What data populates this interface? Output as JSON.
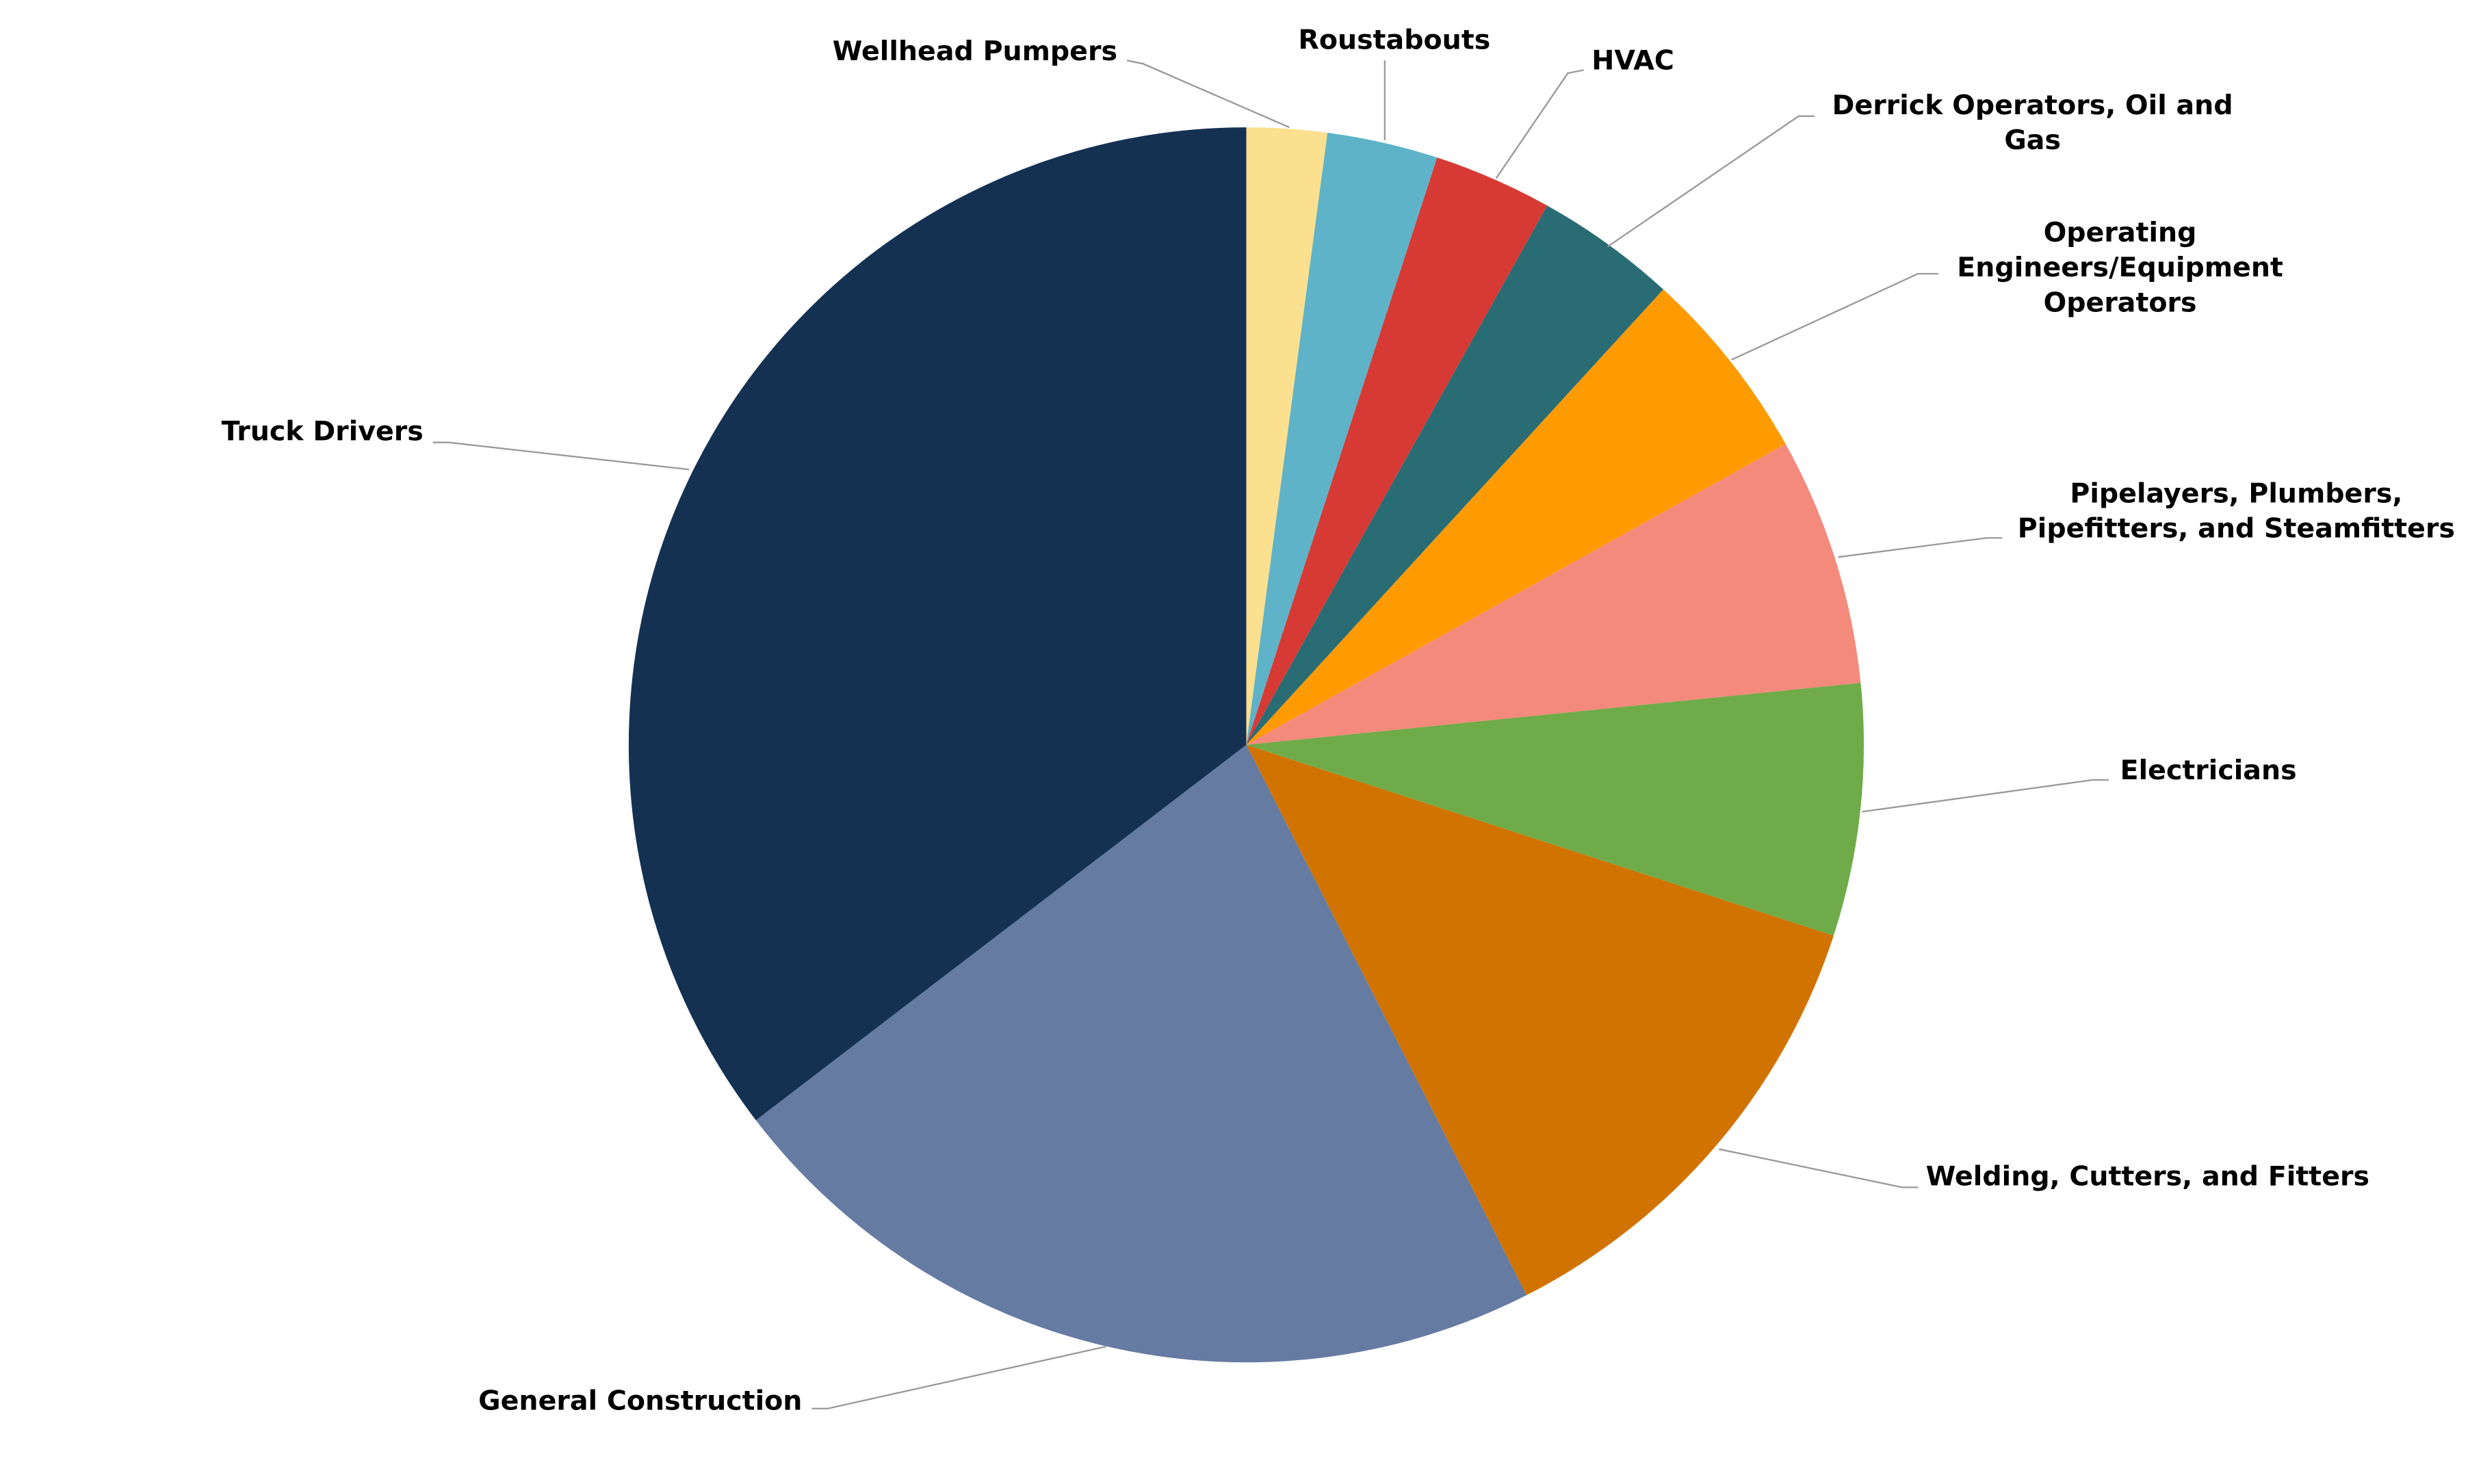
{
  "chart_data": {
    "type": "pie",
    "categories": [
      "Wellhead Pumpers",
      "Roustabouts",
      "HVAC",
      "Derrick Operators, Oil and Gas",
      "Operating Engineers/Equipment Operators",
      "Pipelayers, Plumbers, Pipefitters, and Steamfitters",
      "Electricians",
      "Welding, Cutters, and Fitters",
      "General Construction",
      "Truck Drivers"
    ],
    "values": [
      2.1,
      2.9,
      3.1,
      3.7,
      5.1,
      6.5,
      6.6,
      12.5,
      22.1,
      35.4
    ],
    "colors": [
      "#fae08f",
      "#5eb3c8",
      "#d73a34",
      "#2a6c74",
      "#ff9a00",
      "#f48a7c",
      "#70ab49",
      "#d17300",
      "#667ba2",
      "#143152"
    ]
  }
}
